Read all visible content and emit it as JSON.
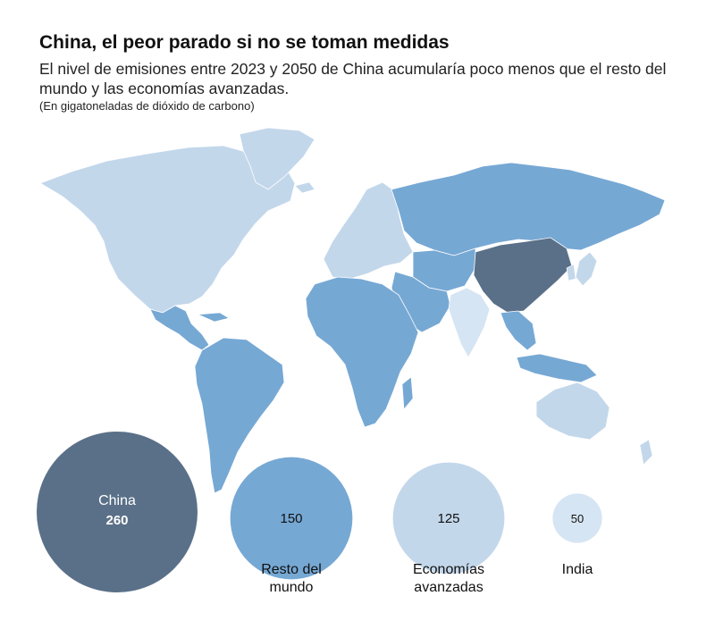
{
  "title": "China, el peor parado si no se toman medidas",
  "subtitle": "El nivel de emisiones entre 2023 y 2050 de China acumularía poco menos que el resto del mundo y las economías avanzadas.",
  "unit_note": "(En gigatoneladas de dióxido de carbono)",
  "colors": {
    "china": "#5a7088",
    "resto": "#76a8d4",
    "avanzadas": "#c3d7eb",
    "india": "#d6e5f3",
    "border": "#ffffff"
  },
  "chart_data": {
    "type": "bubble",
    "title": "China, el peor parado si no se toman medidas",
    "subtitle": "El nivel de emisiones entre 2023 y 2050 de China acumularía poco menos que el resto del mundo y las economías avanzadas.",
    "unit": "(En gigatoneladas de dióxido de carbono)",
    "series": [
      {
        "key": "china",
        "label_inside": "China",
        "label_below": [
          "",
          ""
        ],
        "value": 260,
        "value_text": "260"
      },
      {
        "key": "resto",
        "label_inside": "",
        "label_below": [
          "Resto del",
          "mundo"
        ],
        "value": 150,
        "value_text": "150"
      },
      {
        "key": "avanzadas",
        "label_inside": "",
        "label_below": [
          "Economías",
          "avanzadas"
        ],
        "value": 125,
        "value_text": "125"
      },
      {
        "key": "india",
        "label_inside": "",
        "label_below": [
          "India",
          ""
        ],
        "value": 50,
        "value_text": "50"
      }
    ]
  }
}
